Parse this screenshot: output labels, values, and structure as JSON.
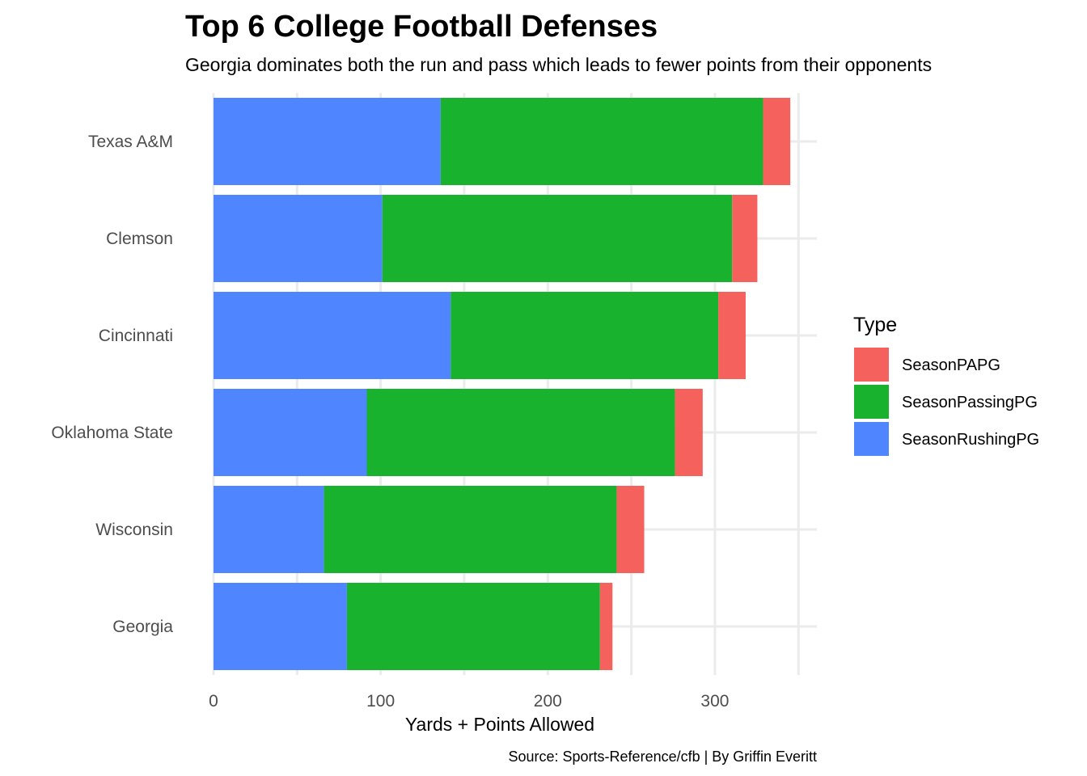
{
  "chart_data": {
    "type": "bar",
    "orientation": "horizontal",
    "stacked": true,
    "title": "Top 6 College Football Defenses",
    "subtitle": "Georgia dominates both the run and pass which leads to fewer points from their opponents",
    "xlabel": "Yards + Points Allowed",
    "ylabel": "",
    "caption": "Source: Sports-Reference/cfb | By Griffin Everitt",
    "xlim": [
      0,
      361
    ],
    "xticks": [
      0,
      100,
      200,
      300
    ],
    "grid": true,
    "categories": [
      "Texas A&M",
      "Clemson",
      "Cincinnati",
      "Oklahoma State",
      "Wisconsin",
      "Georgia"
    ],
    "series": [
      {
        "name": "SeasonRushingPG",
        "color": "#4f86ff",
        "values": [
          135.9,
          101.0,
          141.9,
          91.7,
          66.1,
          79.8
        ]
      },
      {
        "name": "SeasonPassingPG",
        "color": "#18b22f",
        "values": [
          192.9,
          209.3,
          160.1,
          184.4,
          175.1,
          151.4
        ]
      },
      {
        "name": "SeasonPAPG",
        "color": "#f5615c",
        "values": [
          16.3,
          15.1,
          16.4,
          16.6,
          16.5,
          7.5
        ]
      }
    ],
    "legend": {
      "title": "Type",
      "position": "right",
      "order": [
        "SeasonPAPG",
        "SeasonPassingPG",
        "SeasonRushingPG"
      ]
    }
  }
}
